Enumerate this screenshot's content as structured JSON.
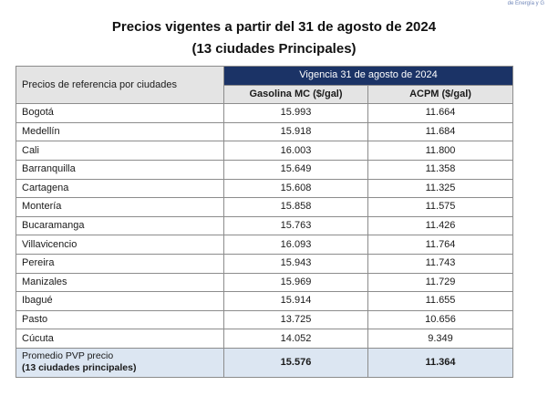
{
  "corner_text": "de Energía y G",
  "title_line1": "Precios vigentes a partir del 31 de agosto de 2024",
  "title_line2": "(13 ciudades Principales)",
  "table": {
    "ref_header": "Precios de referencia por ciudades",
    "vigencia_header": "Vigencia 31 de agosto de 2024",
    "col_gasolina": "Gasolina MC ($/gal)",
    "col_acpm": "ACPM ($/gal)",
    "rows": [
      {
        "city": "Bogotá",
        "gasolina": "15.993",
        "acpm": "11.664"
      },
      {
        "city": "Medellín",
        "gasolina": "15.918",
        "acpm": "11.684"
      },
      {
        "city": "Cali",
        "gasolina": "16.003",
        "acpm": "11.800"
      },
      {
        "city": "Barranquilla",
        "gasolina": "15.649",
        "acpm": "11.358"
      },
      {
        "city": "Cartagena",
        "gasolina": "15.608",
        "acpm": "11.325"
      },
      {
        "city": "Montería",
        "gasolina": "15.858",
        "acpm": "11.575"
      },
      {
        "city": "Bucaramanga",
        "gasolina": "15.763",
        "acpm": "11.426"
      },
      {
        "city": "Villavicencio",
        "gasolina": "16.093",
        "acpm": "11.764"
      },
      {
        "city": "Pereira",
        "gasolina": "15.943",
        "acpm": "11.743"
      },
      {
        "city": "Manizales",
        "gasolina": "15.969",
        "acpm": "11.729"
      },
      {
        "city": "Ibagué",
        "gasolina": "15.914",
        "acpm": "11.655"
      },
      {
        "city": "Pasto",
        "gasolina": "13.725",
        "acpm": "10.656"
      },
      {
        "city": "Cúcuta",
        "gasolina": "14.052",
        "acpm": "9.349"
      }
    ],
    "average": {
      "label_line1": "Promedio PVP precio",
      "label_line2": "(13 ciudades principales)",
      "gasolina": "15.576",
      "acpm": "11.364"
    }
  },
  "colors": {
    "header_navy": "#1b3366",
    "header_gray": "#e4e4e4",
    "average_row_blue": "#dce6f2"
  }
}
